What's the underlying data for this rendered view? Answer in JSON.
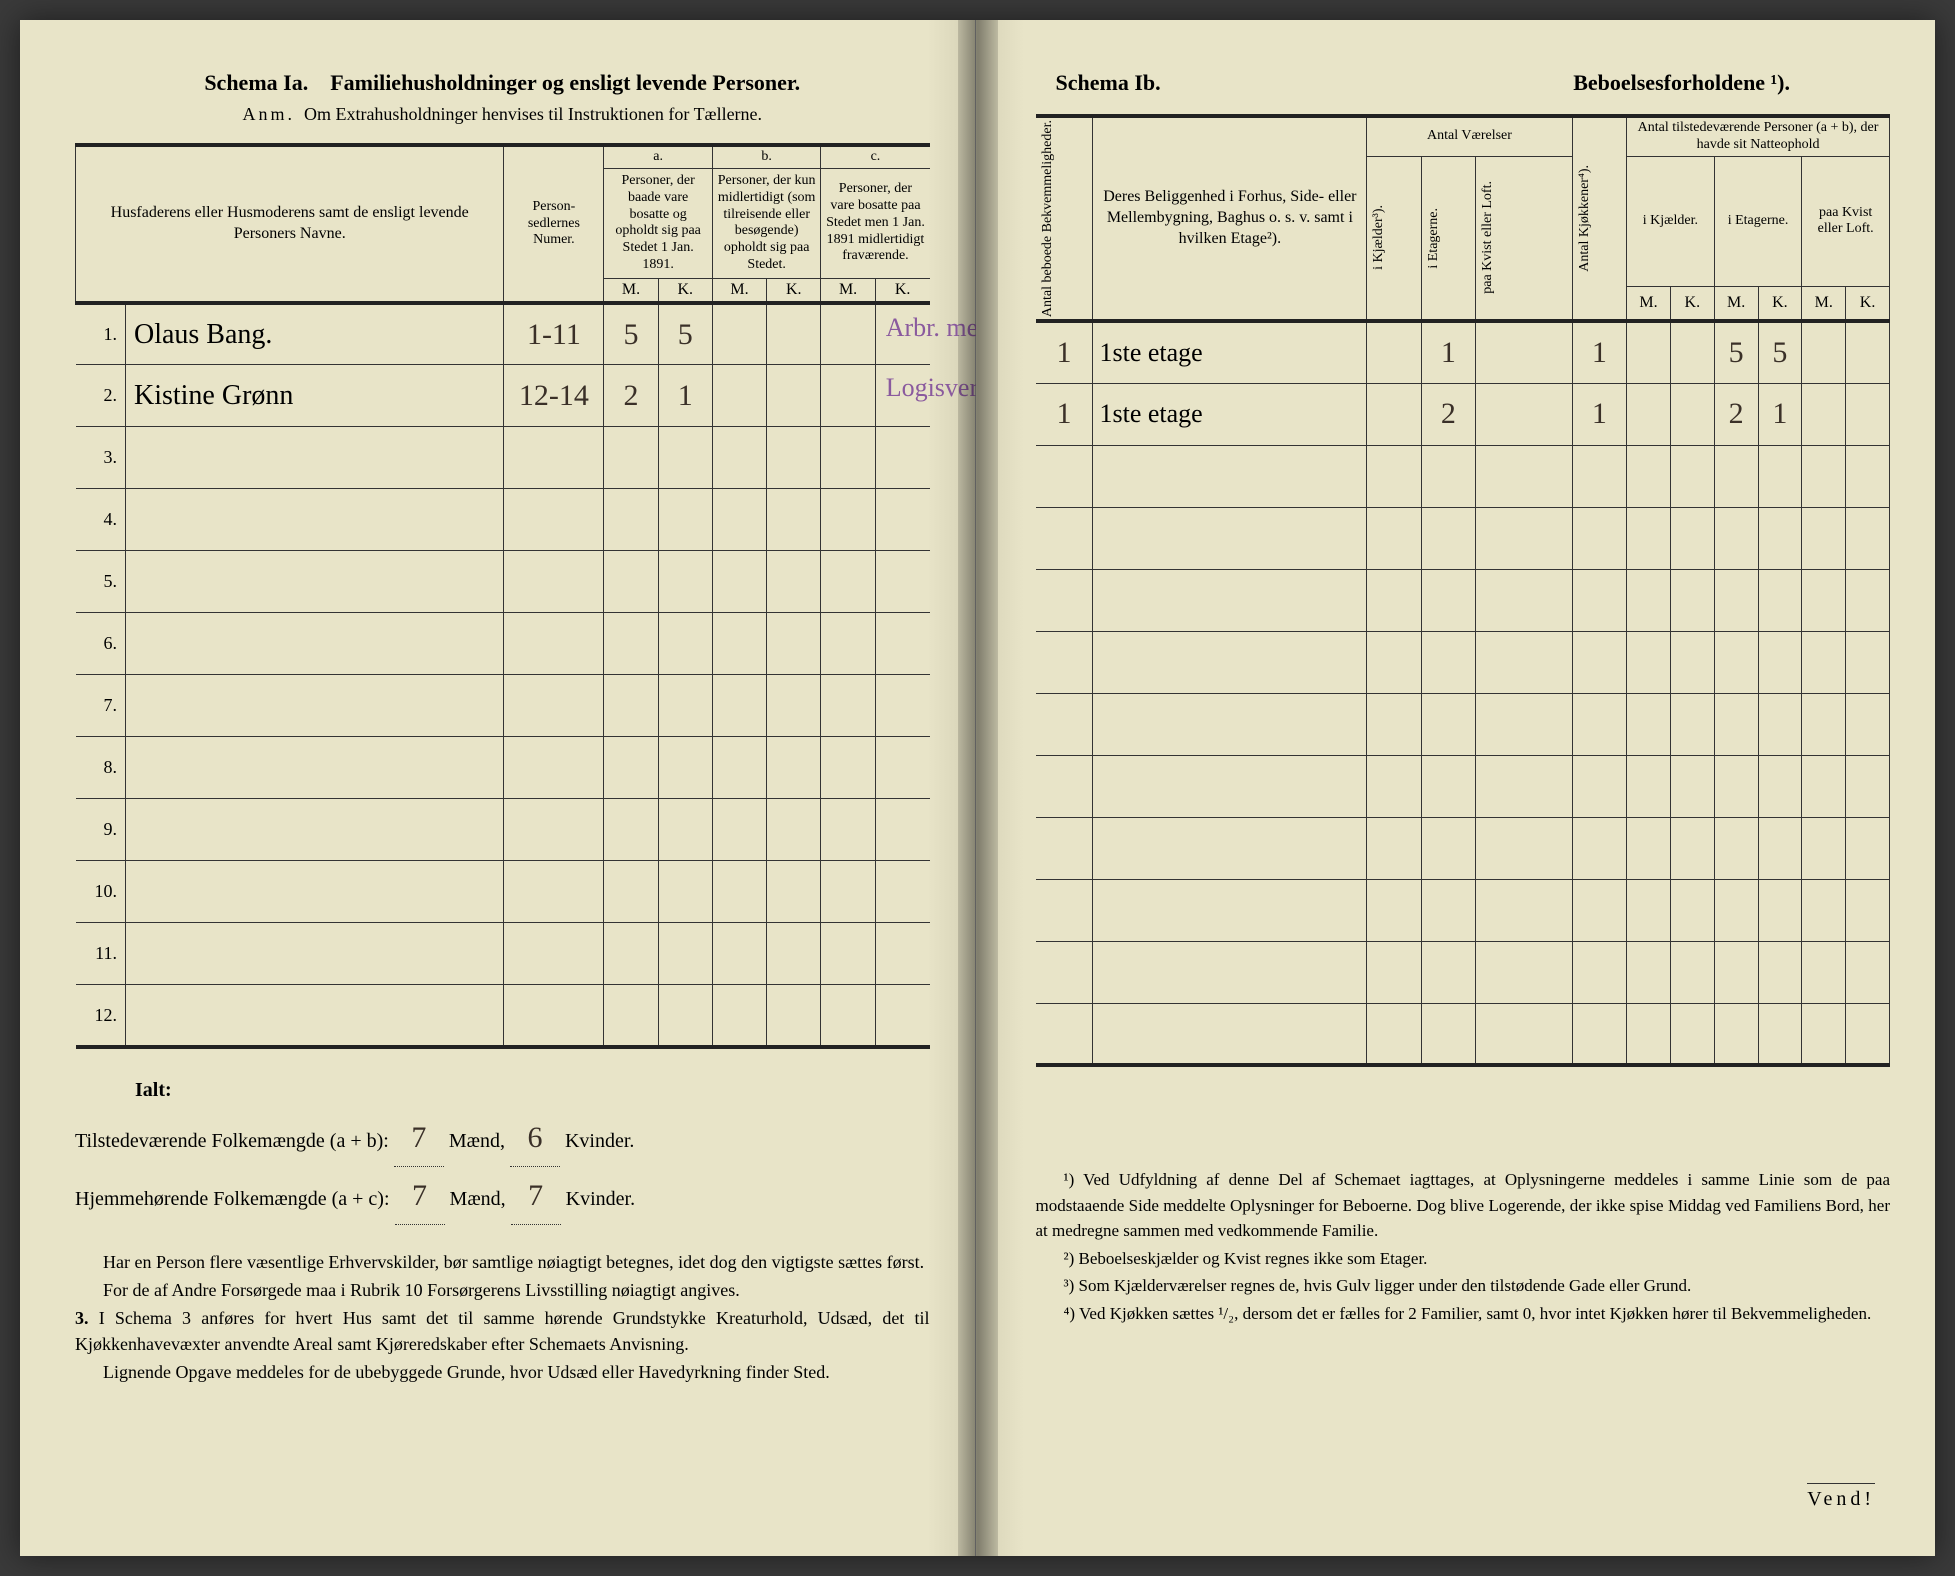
{
  "left": {
    "schema_label": "Schema Ia.",
    "schema_title": "Familiehusholdninger og ensligt levende Personer.",
    "anm_label": "Anm.",
    "anm_text": "Om Extrahusholdninger henvises til Instruktionen for Tællerne.",
    "headers": {
      "names": "Husfaderens eller Husmoderens samt de ensligt levende Personers Navne.",
      "personsedler": "Person-sedlernes Numer.",
      "col_a_label": "a.",
      "col_a": "Personer, der baade vare bosatte og opholdt sig paa Stedet 1 Jan. 1891.",
      "col_b_label": "b.",
      "col_b": "Personer, der kun midlertidigt (som tilreisende eller besøgende) opholdt sig paa Stedet.",
      "col_c_label": "c.",
      "col_c": "Personer, der vare bosatte paa Stedet men 1 Jan. 1891 midlertidigt fraværende.",
      "m": "M.",
      "k": "K."
    },
    "rows": [
      {
        "num": "1.",
        "name": "Olaus Bang.",
        "sedler": "1-11",
        "a_m": "5",
        "a_k": "5",
        "note": "Arbr. mek Værksted"
      },
      {
        "num": "2.",
        "name": "Kistine Grønn",
        "sedler": "12-14",
        "a_m": "2",
        "a_k": "1",
        "note": "Logisvert."
      },
      {
        "num": "3.",
        "name": "",
        "sedler": "",
        "a_m": "",
        "a_k": "",
        "note": ""
      },
      {
        "num": "4.",
        "name": "",
        "sedler": "",
        "a_m": "",
        "a_k": "",
        "note": ""
      },
      {
        "num": "5.",
        "name": "",
        "sedler": "",
        "a_m": "",
        "a_k": "",
        "note": ""
      },
      {
        "num": "6.",
        "name": "",
        "sedler": "",
        "a_m": "",
        "a_k": "",
        "note": ""
      },
      {
        "num": "7.",
        "name": "",
        "sedler": "",
        "a_m": "",
        "a_k": "",
        "note": ""
      },
      {
        "num": "8.",
        "name": "",
        "sedler": "",
        "a_m": "",
        "a_k": "",
        "note": ""
      },
      {
        "num": "9.",
        "name": "",
        "sedler": "",
        "a_m": "",
        "a_k": "",
        "note": ""
      },
      {
        "num": "10.",
        "name": "",
        "sedler": "",
        "a_m": "",
        "a_k": "",
        "note": ""
      },
      {
        "num": "11.",
        "name": "",
        "sedler": "",
        "a_m": "",
        "a_k": "",
        "note": ""
      },
      {
        "num": "12.",
        "name": "",
        "sedler": "",
        "a_m": "",
        "a_k": "",
        "note": ""
      }
    ],
    "ialt_label": "Ialt:",
    "tilstede_label": "Tilstedeværende Folkemængde (a + b):",
    "tilstede_m": "7",
    "tilstede_k": "6",
    "hjemme_label": "Hjemmehørende Folkemængde (a + c):",
    "hjemme_m": "7",
    "hjemme_k": "7",
    "maend": "Mænd,",
    "kvinder": "Kvinder.",
    "body1": "Har en Person flere væsentlige Erhvervskilder, bør samtlige nøiagtigt betegnes, idet dog den vigtigste sættes først.",
    "body2": "For de af Andre Forsørgede maa i Rubrik 10 Forsørgerens Livsstilling nøiagtigt angives.",
    "body3_label": "3.",
    "body3": "I Schema 3 anføres for hvert Hus samt det til samme hørende Grundstykke Kreaturhold, Udsæd, det til Kjøkkenhavevæxter anvendte Areal samt Kjøreredskaber efter Schemaets Anvisning.",
    "body4": "Lignende Opgave meddeles for de ubebyggede Grunde, hvor Udsæd eller Havedyrkning finder Sted."
  },
  "right": {
    "schema_label": "Schema Ib.",
    "schema_title": "Beboelsesforholdene ¹).",
    "headers": {
      "antal_bekv": "Antal beboede Bekvemmeligheder.",
      "beliggenhed": "Deres Beliggenhed i Forhus, Side- eller Mellembygning, Baghus o. s. v. samt i hvilken Etage²).",
      "antal_vaer": "Antal Værelser",
      "i_kjaelder3": "i Kjælder³).",
      "i_etagerne": "i Etagerne.",
      "paa_kvist": "paa Kvist eller Loft.",
      "antal_kjok": "Antal Kjøkkener⁴).",
      "antal_tilstede": "Antal tilstedeværende Personer (a + b), der havde sit Natteophold",
      "i_kjael": "i Kjælder.",
      "i_etag": "i Etagerne.",
      "paa_kvist2": "paa Kvist eller Loft.",
      "m": "M.",
      "k": "K."
    },
    "rows": [
      {
        "bekv": "1",
        "belig": "1ste etage",
        "kj": "",
        "et": "1",
        "kv": "",
        "kjok": "1",
        "km": "",
        "kk": "",
        "em": "5",
        "ek": "5",
        "pm": "",
        "pk": ""
      },
      {
        "bekv": "1",
        "belig": "1ste etage",
        "kj": "",
        "et": "2",
        "kv": "",
        "kjok": "1",
        "km": "",
        "kk": "",
        "em": "2",
        "ek": "1",
        "pm": "",
        "pk": ""
      },
      {
        "bekv": "",
        "belig": "",
        "kj": "",
        "et": "",
        "kv": "",
        "kjok": "",
        "km": "",
        "kk": "",
        "em": "",
        "ek": "",
        "pm": "",
        "pk": ""
      },
      {
        "bekv": "",
        "belig": "",
        "kj": "",
        "et": "",
        "kv": "",
        "kjok": "",
        "km": "",
        "kk": "",
        "em": "",
        "ek": "",
        "pm": "",
        "pk": ""
      },
      {
        "bekv": "",
        "belig": "",
        "kj": "",
        "et": "",
        "kv": "",
        "kjok": "",
        "km": "",
        "kk": "",
        "em": "",
        "ek": "",
        "pm": "",
        "pk": ""
      },
      {
        "bekv": "",
        "belig": "",
        "kj": "",
        "et": "",
        "kv": "",
        "kjok": "",
        "km": "",
        "kk": "",
        "em": "",
        "ek": "",
        "pm": "",
        "pk": ""
      },
      {
        "bekv": "",
        "belig": "",
        "kj": "",
        "et": "",
        "kv": "",
        "kjok": "",
        "km": "",
        "kk": "",
        "em": "",
        "ek": "",
        "pm": "",
        "pk": ""
      },
      {
        "bekv": "",
        "belig": "",
        "kj": "",
        "et": "",
        "kv": "",
        "kjok": "",
        "km": "",
        "kk": "",
        "em": "",
        "ek": "",
        "pm": "",
        "pk": ""
      },
      {
        "bekv": "",
        "belig": "",
        "kj": "",
        "et": "",
        "kv": "",
        "kjok": "",
        "km": "",
        "kk": "",
        "em": "",
        "ek": "",
        "pm": "",
        "pk": ""
      },
      {
        "bekv": "",
        "belig": "",
        "kj": "",
        "et": "",
        "kv": "",
        "kjok": "",
        "km": "",
        "kk": "",
        "em": "",
        "ek": "",
        "pm": "",
        "pk": ""
      },
      {
        "bekv": "",
        "belig": "",
        "kj": "",
        "et": "",
        "kv": "",
        "kjok": "",
        "km": "",
        "kk": "",
        "em": "",
        "ek": "",
        "pm": "",
        "pk": ""
      },
      {
        "bekv": "",
        "belig": "",
        "kj": "",
        "et": "",
        "kv": "",
        "kjok": "",
        "km": "",
        "kk": "",
        "em": "",
        "ek": "",
        "pm": "",
        "pk": ""
      }
    ],
    "fn1": "¹) Ved Udfyldning af denne Del af Schemaet iagttages, at Oplysningerne meddeles i samme Linie som de paa modstaaende Side meddelte Oplysninger for Beboerne. Dog blive Logerende, der ikke spise Middag ved Familiens Bord, her at medregne sammen med vedkommende Familie.",
    "fn2": "²) Beboelseskjælder og Kvist regnes ikke som Etager.",
    "fn3": "³) Som Kjælderværelser regnes de, hvis Gulv ligger under den tilstødende Gade eller Grund.",
    "fn4": "⁴) Ved Kjøkken sættes ¹/₂, dersom det er fælles for 2 Familier, samt 0, hvor intet Kjøkken hører til Bekvemmeligheden.",
    "vend": "Vend!"
  },
  "colors": {
    "page_bg": "#e8e4c8",
    "ink": "#222222",
    "handwriting": "#3a3028",
    "purple_ink": "#8a5a9e",
    "border": "#333333"
  }
}
